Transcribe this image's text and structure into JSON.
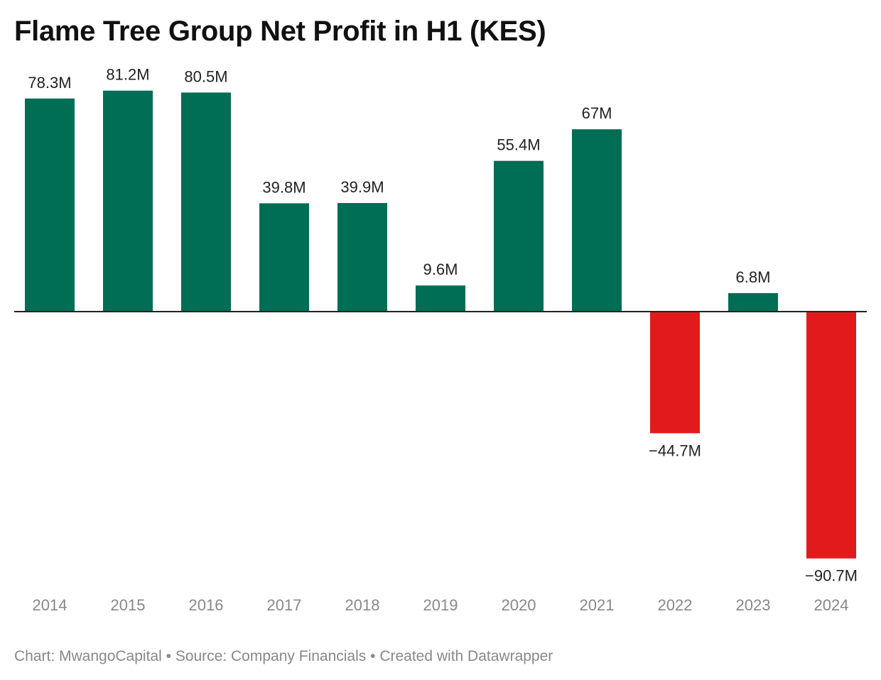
{
  "title": "Flame Tree Group Net Profit in H1 (KES)",
  "chart_data": {
    "type": "bar",
    "title": "Flame Tree Group Net Profit in H1 (KES)",
    "categories": [
      "2014",
      "2015",
      "2016",
      "2017",
      "2018",
      "2019",
      "2020",
      "2021",
      "2022",
      "2023",
      "2024"
    ],
    "values": [
      78.3,
      81.2,
      80.5,
      39.8,
      39.9,
      9.6,
      55.4,
      67,
      -44.7,
      6.8,
      -90.7
    ],
    "value_labels": [
      "78.3M",
      "81.2M",
      "80.5M",
      "39.8M",
      "39.9M",
      "9.6M",
      "55.4M",
      "67M",
      "−44.7M",
      "6.8M",
      "−90.7M"
    ],
    "unit": "M",
    "xlabel": "",
    "ylabel": "",
    "ylim": [
      -100,
      85
    ],
    "grid": false,
    "legend": "none",
    "colors": {
      "positive": "#006d55",
      "negative": "#e31a1c",
      "baseline": "#222222",
      "value_label": "#222222",
      "tick_label": "#888888"
    }
  },
  "footer": {
    "credit": "Chart: MwangoCapital",
    "source": "Source: Company Financials",
    "tool": "Created with Datawrapper",
    "separator": "•"
  }
}
